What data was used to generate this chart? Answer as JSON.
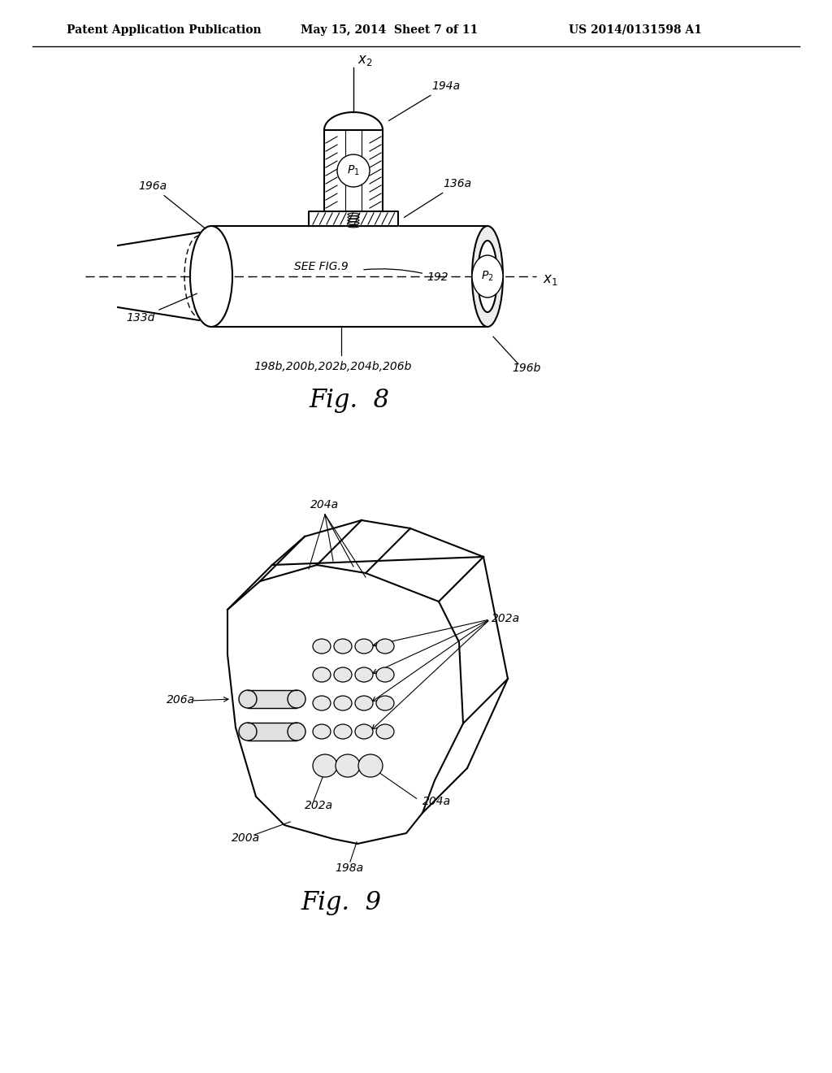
{
  "bg_color": "#ffffff",
  "header_left": "Patent Application Publication",
  "header_mid": "May 15, 2014  Sheet 7 of 11",
  "header_right": "US 2014/0131598 A1",
  "text_color": "#000000",
  "line_color": "#000000"
}
